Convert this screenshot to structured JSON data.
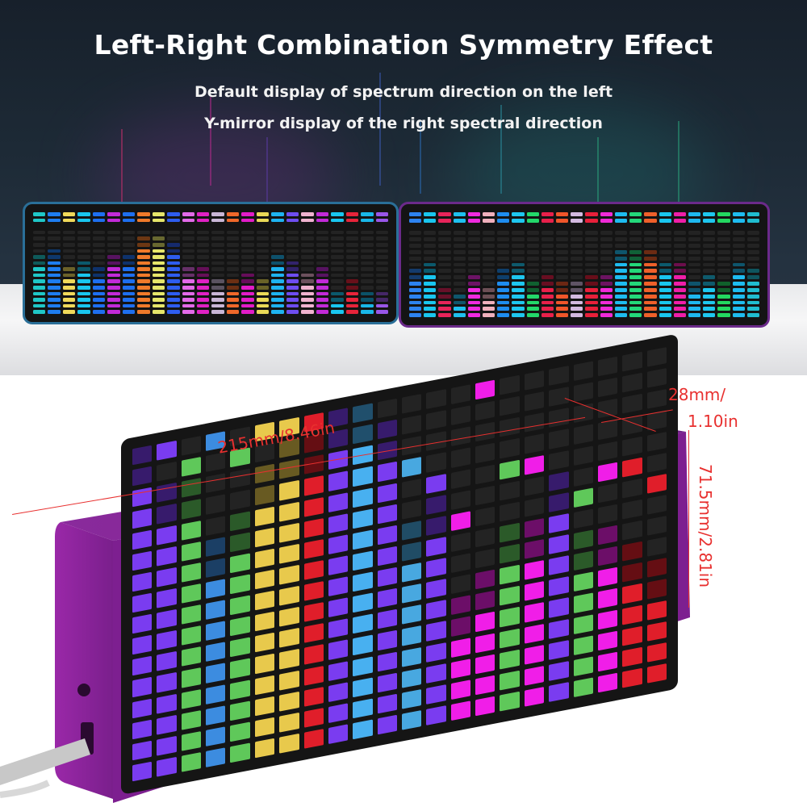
{
  "header": {
    "title": "Left-Right Combination Symmetry Effect",
    "subtitle_line1": "Default display of spectrum direction on the left",
    "subtitle_line2": "Y-mirror display of the right spectral direction"
  },
  "dimensions": {
    "length": "215mm/8.46in",
    "depth_line1": "28mm/",
    "depth_line2": "1.10in",
    "height": "71.5mm/2.81in"
  },
  "colors": {
    "dimension_red": "#e8302f",
    "case_purple": "#7a1f8c",
    "left_case_border": "#2a6f98",
    "right_case_border": "#6b2a8a"
  },
  "left_display": {
    "columns": 24,
    "rows": 14,
    "heights": [
      10,
      11,
      8,
      9,
      8,
      10,
      10,
      13,
      13,
      12,
      8,
      8,
      6,
      6,
      7,
      6,
      10,
      9,
      7,
      8,
      4,
      6,
      4,
      4
    ],
    "colors": [
      "#1fc7c7",
      "#1e7df0",
      "#f0d95a",
      "#19c6ef",
      "#1e6ff0",
      "#c22ad8",
      "#1e6ff0",
      "#f07a2a",
      "#e6e66a",
      "#2e5df0",
      "#e36ae8",
      "#e021c4",
      "#c9b6d6",
      "#f0682a",
      "#e21cc8",
      "#e9d957",
      "#1eb3f0",
      "#6e4df0",
      "#f0b2cf",
      "#c22ad8",
      "#19c6ef",
      "#e8243a",
      "#19b7e8",
      "#9956e8"
    ]
  },
  "right_display": {
    "columns": 24,
    "rows": 14,
    "heights": [
      8,
      9,
      5,
      4,
      7,
      5,
      8,
      9,
      6,
      7,
      6,
      6,
      7,
      7,
      11,
      11,
      11,
      9,
      9,
      6,
      7,
      6,
      9,
      8
    ],
    "colors": [
      "#2d83f0",
      "#19c6ef",
      "#e8245a",
      "#1ec0ef",
      "#f02ae0",
      "#f0b0bc",
      "#1e8df0",
      "#1ec7ef",
      "#23d86a",
      "#e8204a",
      "#f0562a",
      "#d3b9e0",
      "#e8203a",
      "#f02ad8",
      "#1ebcf0",
      "#23d87a",
      "#f0602a",
      "#19c6ef",
      "#f01ea8",
      "#1eb8ef",
      "#1ec7ef",
      "#23d860",
      "#1ebcf0",
      "#20bdd0"
    ]
  },
  "product_display": {
    "columns": 22,
    "rows": 16,
    "heights": [
      16,
      14,
      14,
      11,
      12,
      14,
      15,
      15,
      16,
      16,
      15,
      10,
      11,
      6,
      7,
      9,
      9,
      11,
      8,
      8,
      7,
      6
    ],
    "peaks": [
      16,
      16,
      15,
      16,
      15,
      16,
      16,
      16,
      16,
      16,
      14,
      13,
      12,
      10,
      16,
      12,
      12,
      11,
      10,
      11,
      11,
      10
    ],
    "colors": [
      "#7a3cf0",
      "#7a3cf0",
      "#5fc85a",
      "#3c8ce0",
      "#5fc85a",
      "#e8c94c",
      "#e8c94c",
      "#e01e2a",
      "#7a3cf0",
      "#48b0f0",
      "#7a3cf0",
      "#48a8e0",
      "#7a3cf0",
      "#f01ee8",
      "#f01ee8",
      "#5fc85a",
      "#f01ee8",
      "#7a3cf0",
      "#5fc85a",
      "#f01ee8",
      "#e01e2a",
      "#e01e2a"
    ]
  }
}
